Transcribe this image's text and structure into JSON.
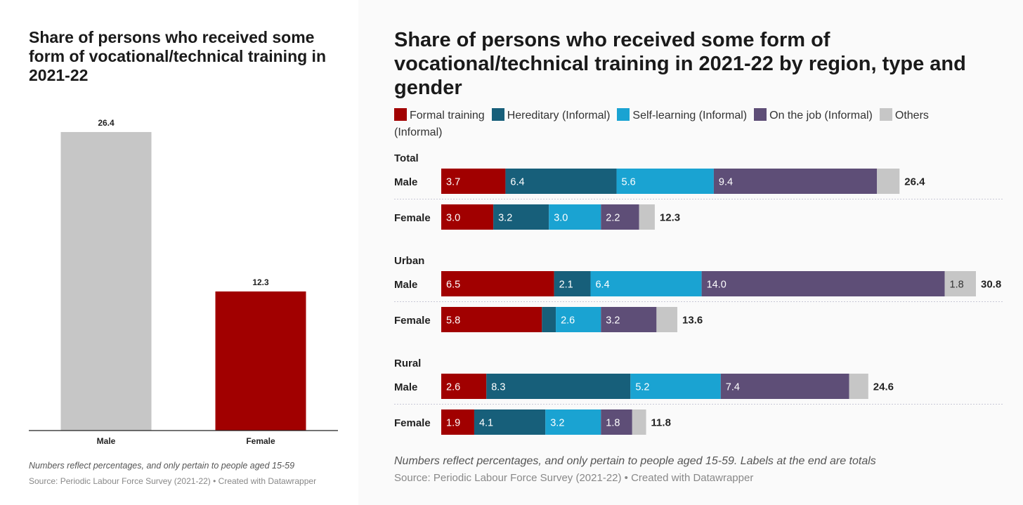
{
  "chart_data": [
    {
      "type": "bar",
      "title": "Share of persons who received some form of vocational/technical training in 2021-22",
      "categories": [
        "Male",
        "Female"
      ],
      "values": [
        26.4,
        12.3
      ],
      "colors": [
        "#c6c6c6",
        "#a10000"
      ],
      "ylim": [
        0,
        30
      ],
      "grid": false,
      "note": "Numbers reflect percentages, and only pertain to people aged 15-59",
      "source": "Source: Periodic Labour Force Survey (2021-22) • Created with Datawrapper"
    },
    {
      "type": "stacked-bar",
      "orientation": "horizontal",
      "title": "Share of persons who received some form of vocational/technical training in 2021-22 by region, type and gender",
      "legend_position": "top",
      "xlim": [
        0,
        30.8
      ],
      "series": [
        {
          "name": "Formal training",
          "color": "#a10000"
        },
        {
          "name": "Hereditary (Informal)",
          "color": "#175f7a"
        },
        {
          "name": "Self-learning (Informal)",
          "color": "#1aa3d2"
        },
        {
          "name": "On the job (Informal)",
          "color": "#5e4e77"
        },
        {
          "name": "Others (Informal)",
          "color": "#c6c6c6"
        }
      ],
      "groups": [
        {
          "label": "Total",
          "rows": [
            {
              "label": "Male",
              "values": [
                3.7,
                6.4,
                5.6,
                9.4,
                1.3
              ],
              "labels": [
                "3.7",
                "6.4",
                "5.6",
                "9.4",
                ""
              ],
              "total": "26.4"
            },
            {
              "label": "Female",
              "values": [
                3.0,
                3.2,
                3.0,
                2.2,
                0.9
              ],
              "labels": [
                "3.0",
                "3.2",
                "3.0",
                "2.2",
                ""
              ],
              "total": "12.3"
            }
          ]
        },
        {
          "label": "Urban",
          "rows": [
            {
              "label": "Male",
              "values": [
                6.5,
                2.1,
                6.4,
                14.0,
                1.8
              ],
              "labels": [
                "6.5",
                "2.1",
                "6.4",
                "14.0",
                "1.8"
              ],
              "total": "30.8"
            },
            {
              "label": "Female",
              "values": [
                5.8,
                0.8,
                2.6,
                3.2,
                1.2
              ],
              "labels": [
                "5.8",
                "",
                "2.6",
                "3.2",
                ""
              ],
              "total": "13.6"
            }
          ]
        },
        {
          "label": "Rural",
          "rows": [
            {
              "label": "Male",
              "values": [
                2.6,
                8.3,
                5.2,
                7.4,
                1.1
              ],
              "labels": [
                "2.6",
                "8.3",
                "5.2",
                "7.4",
                ""
              ],
              "total": "24.6"
            },
            {
              "label": "Female",
              "values": [
                1.9,
                4.1,
                3.2,
                1.8,
                0.8
              ],
              "labels": [
                "1.9",
                "4.1",
                "3.2",
                "1.8",
                ""
              ],
              "total": "11.8"
            }
          ]
        }
      ],
      "note": "Numbers reflect percentages, and only pertain to people aged 15-59. Labels at the end are totals",
      "source": "Source: Periodic Labour Force Survey (2021-22) • Created with Datawrapper"
    }
  ]
}
